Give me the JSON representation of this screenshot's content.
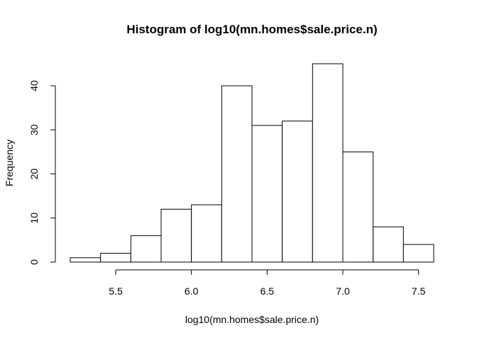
{
  "chart_data": {
    "type": "bar",
    "title": "Histogram of log10(mn.homes$sale.price.n)",
    "xlabel": "log10(mn.homes$sale.price.n)",
    "ylabel": "Frequency",
    "bin_edges": [
      5.2,
      5.4,
      5.6,
      5.8,
      6.0,
      6.2,
      6.4,
      6.6,
      6.8,
      7.0,
      7.2,
      7.4,
      7.6
    ],
    "values": [
      1,
      2,
      6,
      12,
      13,
      40,
      31,
      32,
      45,
      25,
      8,
      4
    ],
    "xlim": [
      5.2,
      7.6
    ],
    "ylim": [
      0,
      45
    ],
    "x_ticks": [
      5.5,
      6.0,
      6.5,
      7.0,
      7.5
    ],
    "x_tick_labels": [
      "5.5",
      "6.0",
      "6.5",
      "7.0",
      "7.5"
    ],
    "y_ticks": [
      0,
      10,
      20,
      30,
      40
    ],
    "y_tick_labels": [
      "0",
      "10",
      "20",
      "30",
      "40"
    ],
    "grid": false,
    "bar_fill": "#ffffff",
    "bar_stroke": "#000000"
  }
}
